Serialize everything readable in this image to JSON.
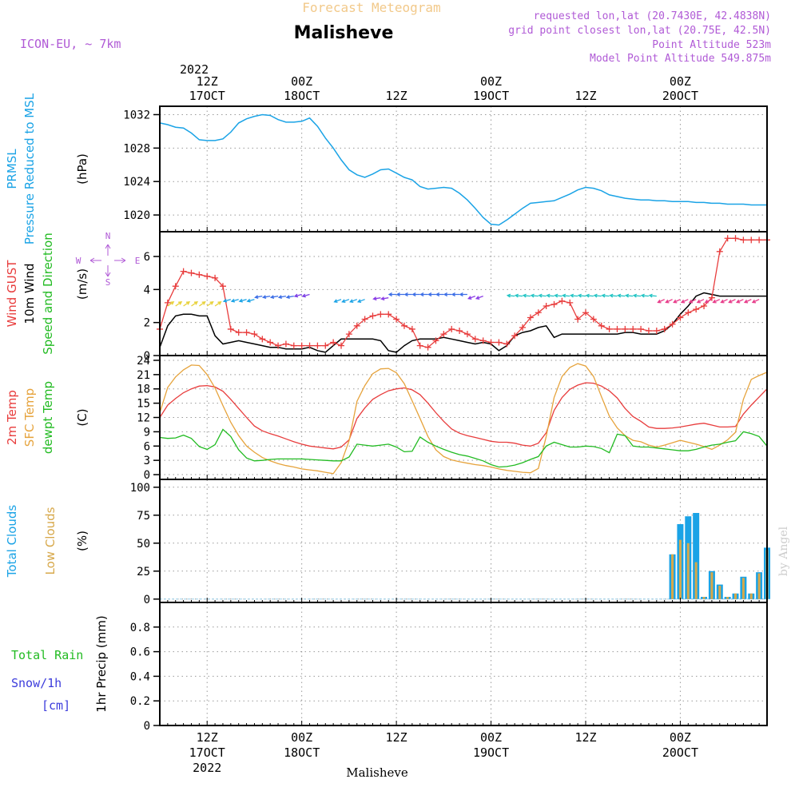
{
  "header": {
    "super_title": "Forecast Meteogram",
    "title": "Malisheve",
    "model": "ICON-EU, ~ 7km",
    "requested": "requested lon,lat (20.7430E, 42.4838N)",
    "grid_point": "grid point closest lon,lat (20.75E, 42.5N)",
    "point_altitude": "Point Altitude 523m",
    "model_altitude": "Model Point Altitude 549.875m",
    "footer_name": "Malisheve",
    "credit": "by Angel"
  },
  "time_axis": {
    "unit": "hours since 2022-10-17 00Z",
    "range_hours": [
      6,
      83
    ],
    "ticks": [
      {
        "hour": 12,
        "lines": [
          "12Z",
          "17OCT",
          "2022"
        ]
      },
      {
        "hour": 24,
        "lines": [
          "00Z",
          "18OCT"
        ]
      },
      {
        "hour": 36,
        "lines": [
          "12Z"
        ]
      },
      {
        "hour": 48,
        "lines": [
          "00Z",
          "19OCT"
        ]
      },
      {
        "hour": 60,
        "lines": [
          "12Z"
        ]
      },
      {
        "hour": 72,
        "lines": [
          "00Z",
          "20OCT"
        ]
      }
    ],
    "top_year": "2022"
  },
  "panels": {
    "pressure": {
      "labels": [
        {
          "text": "PRMSL",
          "color": "#1aa3e6"
        },
        {
          "text": "Pressure Reduced to MSL",
          "color": "#1aa3e6"
        }
      ],
      "unit": "(hPa)"
    },
    "wind": {
      "labels": [
        {
          "text": "Wind GUST",
          "color": "#e83c3c"
        },
        {
          "text": "10m Wind",
          "color": "#000000"
        },
        {
          "text": "Speed and Direction",
          "color": "#22bb22"
        }
      ],
      "unit": "(m/s)",
      "compass": {
        "n": "N",
        "s": "S",
        "e": "E",
        "w": "W"
      }
    },
    "temp": {
      "labels": [
        {
          "text": "2m Temp",
          "color": "#e83c3c"
        },
        {
          "text": "SFC Temp",
          "color": "#e6a33c"
        },
        {
          "text": "dewpt Temp",
          "color": "#22bb22"
        }
      ],
      "unit": "(C)"
    },
    "clouds": {
      "labels": [
        {
          "text": "Total Clouds",
          "color": "#1aa3e6"
        },
        {
          "text": "Low Clouds",
          "color": "#d7a84a"
        }
      ],
      "unit": "(%)"
    },
    "precip": {
      "left_labels": [
        {
          "text": "Total  Rain",
          "color": "#22bb22"
        },
        {
          "text": "Snow/1h",
          "color": "#3c3cdc"
        },
        {
          "text": "[cm]",
          "color": "#3c3cdc"
        }
      ],
      "unit": "1hr Precip (mm)"
    }
  },
  "colors": {
    "pressure": "#1aa3e6",
    "gust": "#e83c3c",
    "wind": "#000000",
    "t2m": "#e83c3c",
    "sfc": "#e6a33c",
    "dewpt": "#22bb22",
    "total_clouds": "#1aa3e6",
    "low_clouds": "#d7a84a",
    "title_super": "#f2c98a",
    "meta": "#b05ad6"
  },
  "chart_data": [
    {
      "type": "line",
      "name": "pressure",
      "ylabel": "PRMSL Pressure Reduced to MSL (hPa)",
      "ylim": [
        1018,
        1033
      ],
      "yticks": [
        1020,
        1024,
        1028,
        1032
      ],
      "x": [
        6,
        7,
        8,
        9,
        10,
        11,
        12,
        13,
        14,
        15,
        16,
        17,
        18,
        19,
        20,
        21,
        22,
        23,
        24,
        25,
        26,
        27,
        28,
        29,
        30,
        31,
        32,
        33,
        34,
        35,
        36,
        37,
        38,
        39,
        40,
        41,
        42,
        43,
        44,
        45,
        46,
        47,
        48,
        49,
        50,
        51,
        52,
        53,
        54,
        55,
        56,
        57,
        58,
        59,
        60,
        61,
        62,
        63,
        64,
        65,
        66,
        67,
        68,
        69,
        70,
        71,
        72,
        73,
        74,
        75,
        76,
        77,
        78,
        79,
        80,
        81,
        82,
        83
      ],
      "series": [
        {
          "values": [
            1031.0,
            1030.8,
            1030.5,
            1030.4,
            1029.8,
            1029.0,
            1028.9,
            1028.9,
            1029.1,
            1029.9,
            1031.0,
            1031.5,
            1031.8,
            1032.0,
            1031.9,
            1031.4,
            1031.1,
            1031.1,
            1031.2,
            1031.6,
            1030.6,
            1029.2,
            1028.0,
            1026.6,
            1025.4,
            1024.8,
            1024.5,
            1024.9,
            1025.4,
            1025.5,
            1025.0,
            1024.5,
            1024.2,
            1023.4,
            1023.1,
            1023.2,
            1023.3,
            1023.2,
            1022.6,
            1021.8,
            1020.8,
            1019.7,
            1018.9,
            1018.8,
            1019.4,
            1020.1,
            1020.8,
            1021.4,
            1021.5,
            1021.6,
            1021.7,
            1022.1,
            1022.5,
            1023.0,
            1023.3,
            1023.2,
            1022.9,
            1022.4,
            1022.2,
            1022.0,
            1021.9,
            1021.8,
            1021.8,
            1021.7,
            1021.7,
            1021.6,
            1021.6,
            1021.6,
            1021.5,
            1021.5,
            1021.4,
            1021.4,
            1021.3,
            1021.3,
            1021.3,
            1021.2,
            1021.2,
            1021.2
          ]
        }
      ]
    },
    {
      "type": "line",
      "name": "wind",
      "ylabel": "Wind GUST / 10m Wind Speed and Direction (m/s)",
      "ylim": [
        0,
        7.5
      ],
      "yticks": [
        0,
        2,
        4,
        6
      ],
      "x": [
        6,
        7,
        8,
        9,
        10,
        11,
        12,
        13,
        14,
        15,
        16,
        17,
        18,
        19,
        20,
        21,
        22,
        23,
        24,
        25,
        26,
        27,
        28,
        29,
        30,
        31,
        32,
        33,
        34,
        35,
        36,
        37,
        38,
        39,
        40,
        41,
        42,
        43,
        44,
        45,
        46,
        47,
        48,
        49,
        50,
        51,
        52,
        53,
        54,
        55,
        56,
        57,
        58,
        59,
        60,
        61,
        62,
        63,
        64,
        65,
        66,
        67,
        68,
        69,
        70,
        71,
        72,
        73,
        74,
        75,
        76,
        77,
        78,
        79,
        80,
        81,
        82,
        83
      ],
      "series": [
        {
          "name": "Wind GUST",
          "values": [
            1.6,
            3.2,
            4.2,
            5.1,
            5.0,
            4.9,
            4.8,
            4.7,
            4.2,
            1.6,
            1.4,
            1.4,
            1.3,
            1.0,
            0.8,
            0.6,
            0.7,
            0.6,
            0.6,
            0.6,
            0.6,
            0.6,
            0.8,
            0.6,
            1.3,
            1.8,
            2.2,
            2.4,
            2.5,
            2.5,
            2.2,
            1.8,
            1.6,
            0.6,
            0.5,
            0.9,
            1.3,
            1.6,
            1.5,
            1.3,
            1.0,
            0.9,
            0.8,
            0.8,
            0.7,
            1.2,
            1.7,
            2.3,
            2.6,
            3.0,
            3.1,
            3.3,
            3.2,
            2.2,
            2.6,
            2.2,
            1.8,
            1.6,
            1.6,
            1.6,
            1.6,
            1.6,
            1.5,
            1.5,
            1.6,
            1.9,
            2.3,
            2.6,
            2.8,
            3.0,
            3.5,
            6.3,
            7.1,
            7.1,
            7.0,
            7.0,
            7.0,
            7.0
          ]
        },
        {
          "name": "10m Wind",
          "values": [
            0.5,
            1.8,
            2.4,
            2.5,
            2.5,
            2.4,
            2.4,
            1.2,
            0.7,
            0.8,
            0.9,
            0.8,
            0.7,
            0.6,
            0.5,
            0.5,
            0.4,
            0.4,
            0.4,
            0.5,
            0.3,
            0.2,
            0.6,
            1.0,
            1.0,
            1.0,
            1.0,
            1.0,
            0.9,
            0.3,
            0.2,
            0.6,
            0.9,
            1.0,
            1.0,
            1.0,
            1.1,
            1.0,
            0.9,
            0.8,
            0.7,
            0.8,
            0.7,
            0.3,
            0.6,
            1.2,
            1.4,
            1.5,
            1.7,
            1.8,
            1.1,
            1.3,
            1.3,
            1.3,
            1.3,
            1.3,
            1.3,
            1.3,
            1.3,
            1.4,
            1.4,
            1.3,
            1.3,
            1.3,
            1.5,
            1.9,
            2.5,
            3.0,
            3.6,
            3.8,
            3.7,
            3.6,
            3.6,
            3.6,
            3.6,
            3.6,
            3.6,
            3.6
          ]
        }
      ]
    },
    {
      "type": "line",
      "name": "temperature",
      "ylabel": "2m Temp / SFC Temp / dewpt Temp (C)",
      "ylim": [
        -1,
        25
      ],
      "yticks": [
        0,
        3,
        6,
        9,
        12,
        15,
        18,
        21,
        24
      ],
      "x": [
        6,
        7,
        8,
        9,
        10,
        11,
        12,
        13,
        14,
        15,
        16,
        17,
        18,
        19,
        20,
        21,
        22,
        23,
        24,
        25,
        26,
        27,
        28,
        29,
        30,
        31,
        32,
        33,
        34,
        35,
        36,
        37,
        38,
        39,
        40,
        41,
        42,
        43,
        44,
        45,
        46,
        47,
        48,
        49,
        50,
        51,
        52,
        53,
        54,
        55,
        56,
        57,
        58,
        59,
        60,
        61,
        62,
        63,
        64,
        65,
        66,
        67,
        68,
        69,
        70,
        71,
        72,
        73,
        74,
        75,
        76,
        77,
        78,
        79,
        80,
        81,
        82,
        83
      ],
      "series": [
        {
          "name": "2m Temp",
          "values": [
            12.0,
            14.6,
            16.0,
            17.2,
            18.0,
            18.6,
            18.7,
            18.4,
            17.5,
            15.8,
            13.9,
            12.0,
            10.2,
            9.2,
            8.6,
            8.1,
            7.5,
            6.9,
            6.4,
            6.0,
            5.8,
            5.6,
            5.4,
            5.8,
            7.3,
            11.8,
            14.0,
            15.8,
            16.8,
            17.6,
            18.0,
            18.2,
            17.8,
            16.8,
            15.0,
            13.0,
            11.2,
            9.6,
            8.7,
            8.2,
            7.8,
            7.4,
            7.0,
            6.8,
            6.8,
            6.6,
            6.2,
            6.0,
            6.6,
            8.8,
            13.5,
            16.2,
            17.9,
            18.8,
            19.3,
            19.2,
            18.6,
            17.6,
            16.1,
            13.9,
            12.2,
            11.2,
            10.0,
            9.7,
            9.7,
            9.8,
            10.0,
            10.3,
            10.6,
            10.8,
            10.4,
            10.0,
            10.0,
            10.1,
            12.7,
            14.6,
            16.3,
            18.0
          ]
        },
        {
          "name": "SFC Temp",
          "values": [
            13.0,
            18.3,
            20.5,
            22.0,
            23.0,
            22.9,
            21.0,
            18.2,
            14.5,
            11.0,
            8.2,
            6.0,
            4.7,
            3.6,
            2.9,
            2.3,
            1.9,
            1.6,
            1.2,
            1.0,
            0.8,
            0.5,
            0.2,
            2.5,
            7.1,
            15.4,
            18.7,
            21.2,
            22.2,
            22.3,
            21.4,
            19.1,
            15.5,
            11.8,
            8.0,
            5.2,
            3.8,
            3.1,
            2.7,
            2.4,
            2.1,
            1.9,
            1.6,
            1.2,
            0.9,
            0.7,
            0.5,
            0.4,
            1.3,
            8.0,
            16.2,
            20.6,
            22.5,
            23.3,
            22.8,
            20.6,
            16.4,
            12.3,
            9.8,
            8.2,
            7.2,
            6.9,
            6.2,
            5.8,
            6.2,
            6.7,
            7.2,
            6.8,
            6.4,
            5.9,
            5.3,
            6.2,
            7.3,
            8.9,
            15.8,
            20.0,
            20.8,
            21.5
          ]
        },
        {
          "name": "dewpt Temp",
          "values": [
            7.8,
            7.6,
            7.7,
            8.3,
            7.6,
            5.9,
            5.3,
            6.3,
            9.5,
            8.0,
            5.2,
            3.5,
            2.9,
            3.0,
            3.2,
            3.3,
            3.3,
            3.3,
            3.3,
            3.2,
            3.1,
            3.0,
            2.9,
            2.9,
            3.7,
            6.4,
            6.2,
            6.0,
            6.2,
            6.4,
            5.8,
            4.8,
            4.9,
            7.9,
            6.8,
            6.0,
            5.3,
            4.7,
            4.2,
            3.9,
            3.4,
            2.9,
            2.1,
            1.6,
            1.7,
            2.0,
            2.5,
            3.2,
            3.8,
            6.0,
            6.8,
            6.3,
            5.8,
            5.8,
            6.0,
            5.9,
            5.5,
            4.6,
            8.5,
            8.2,
            6.0,
            5.8,
            5.8,
            5.6,
            5.4,
            5.2,
            5.0,
            5.0,
            5.3,
            5.8,
            6.2,
            6.4,
            6.8,
            7.1,
            9.0,
            8.6,
            8.0,
            6.0
          ]
        }
      ]
    },
    {
      "type": "bar",
      "name": "clouds",
      "ylabel": "Total Clouds / Low Clouds (%)",
      "ylim": [
        -3,
        107
      ],
      "yticks": [
        0,
        25,
        50,
        75,
        100
      ],
      "x": [
        71,
        72,
        73,
        74,
        75,
        76,
        77,
        78,
        79,
        80,
        81,
        82,
        83
      ],
      "series": [
        {
          "name": "Total Clouds",
          "values": [
            40,
            67,
            74,
            77,
            2,
            25,
            13,
            2,
            5,
            20,
            5,
            24,
            46
          ]
        },
        {
          "name": "Low Clouds",
          "values": [
            40,
            53,
            50,
            33,
            2,
            24,
            12,
            2,
            5,
            19,
            5,
            23,
            44
          ]
        }
      ]
    },
    {
      "type": "bar",
      "name": "precip",
      "ylabel": "1hr Precip (mm)",
      "ylim": [
        0,
        1.0
      ],
      "yticks": [
        0,
        0.2,
        0.4,
        0.6,
        0.8
      ],
      "x": [],
      "series": [
        {
          "name": "Total Rain",
          "values": []
        },
        {
          "name": "Snow/1h",
          "values": []
        }
      ]
    }
  ],
  "wind_arrows": {
    "note_units": "direction in degrees the wind blows toward (0=E, 90=N screen-up)",
    "groups": [
      {
        "hours": [
          7,
          8,
          9,
          10,
          11,
          12,
          13
        ],
        "level": 3.0,
        "color": "#e8d23c",
        "dir": 35
      },
      {
        "hours": [
          15,
          16,
          17,
          18
        ],
        "level": 3.4,
        "color": "#1aa3e6",
        "dir": 195
      },
      {
        "hours": [
          19,
          20,
          21,
          22,
          23
        ],
        "level": 3.6,
        "color": "#3c6ee6",
        "dir": 190
      },
      {
        "hours": [
          24,
          25
        ],
        "level": 3.7,
        "color": "#7a3ce6",
        "dir": 195
      },
      {
        "hours": [
          29,
          30,
          31,
          32
        ],
        "level": 3.4,
        "color": "#1aa3e6",
        "dir": 200
      },
      {
        "hours": [
          34,
          35
        ],
        "level": 3.5,
        "color": "#8a3ce6",
        "dir": 190
      },
      {
        "hours": [
          36,
          37,
          38,
          39,
          40,
          41,
          42,
          43,
          44,
          45
        ],
        "level": 3.7,
        "color": "#3c6ee6",
        "dir": 180
      },
      {
        "hours": [
          46,
          47
        ],
        "level": 3.6,
        "color": "#8a3ce6",
        "dir": 200
      },
      {
        "hours": [
          51,
          52,
          53,
          54,
          55,
          56,
          57,
          58,
          59,
          60,
          61,
          62,
          63,
          64,
          65,
          66,
          67,
          68,
          69
        ],
        "level": 3.6,
        "color": "#22c4c4",
        "dir": 175
      },
      {
        "hours": [
          70,
          71,
          72,
          73,
          74,
          75,
          76,
          77,
          78,
          79,
          80,
          81,
          82
        ],
        "level": 3.4,
        "color": "#e83c8a",
        "dir": 205
      }
    ]
  }
}
